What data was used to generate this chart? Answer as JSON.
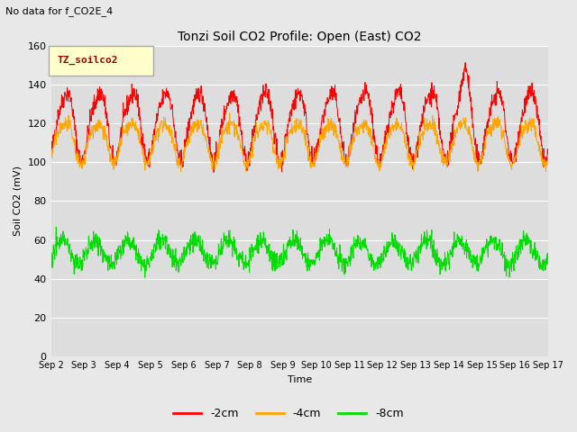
{
  "title": "Tonzi Soil CO2 Profile: Open (East) CO2",
  "subtitle": "No data for f_CO2E_4",
  "ylabel": "Soil CO2 (mV)",
  "xlabel": "Time",
  "legend_label": "TZ_soilco2",
  "series_labels": [
    "-2cm",
    "-4cm",
    "-8cm"
  ],
  "series_colors": [
    "#ff0000",
    "#ffa500",
    "#00dd00"
  ],
  "ylim": [
    0,
    160
  ],
  "yticks": [
    0,
    20,
    40,
    60,
    80,
    100,
    120,
    140,
    160
  ],
  "xtick_labels": [
    "Sep 2",
    "Sep 3",
    "Sep 4",
    "Sep 5",
    "Sep 6",
    "Sep 7",
    "Sep 8",
    "Sep 9",
    "Sep 10",
    "Sep 11",
    "Sep 12",
    "Sep 13",
    "Sep 14",
    "Sep 15",
    "Sep 16",
    "Sep 17"
  ],
  "bg_color": "#e8e8e8",
  "plot_bg_color": "#dddddd",
  "grid_color": "#ffffff",
  "n_points": 1440,
  "seed": 42,
  "figsize": [
    6.4,
    4.8
  ],
  "dpi": 100
}
